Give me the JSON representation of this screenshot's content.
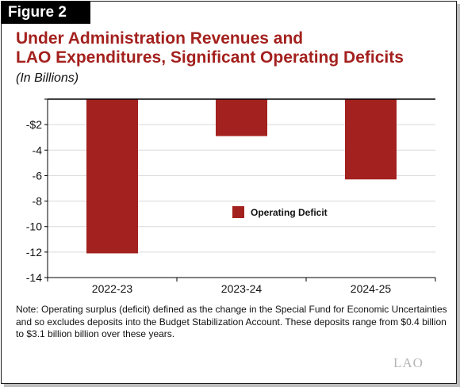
{
  "figure_label": "Figure 2",
  "title_line1": "Under Administration Revenues and",
  "title_line2": "LAO Expenditures, Significant Operating Deficits",
  "subtitle": "(In Billions)",
  "note": "Note: Operating surplus (deficit) defined as the change in the Special Fund for Economic Uncertainties and so excludes deposits into the Budget Stabilization Account. These deposits range from $0.4 billion to $3.1 billion billion over these years.",
  "logo": "LAO",
  "colors": {
    "bar": "#a3211e",
    "title": "#a3211e",
    "grid": "#d9d9d9"
  },
  "chart_data": {
    "type": "bar",
    "categories": [
      "2022-23",
      "2023-24",
      "2024-25"
    ],
    "series": [
      {
        "name": "Operating Deficit",
        "values": [
          -12.1,
          -2.9,
          -6.3
        ]
      }
    ],
    "ylim": [
      -14,
      0
    ],
    "yticks": [
      0,
      -2,
      -4,
      -6,
      -8,
      -10,
      -12,
      -14
    ],
    "ytick_labels": [
      "",
      "-$2",
      "-4",
      "-6",
      "-8",
      "-10",
      "-12",
      "-14"
    ],
    "xlabel": "",
    "ylabel": "",
    "grid": true,
    "legend": "center"
  }
}
